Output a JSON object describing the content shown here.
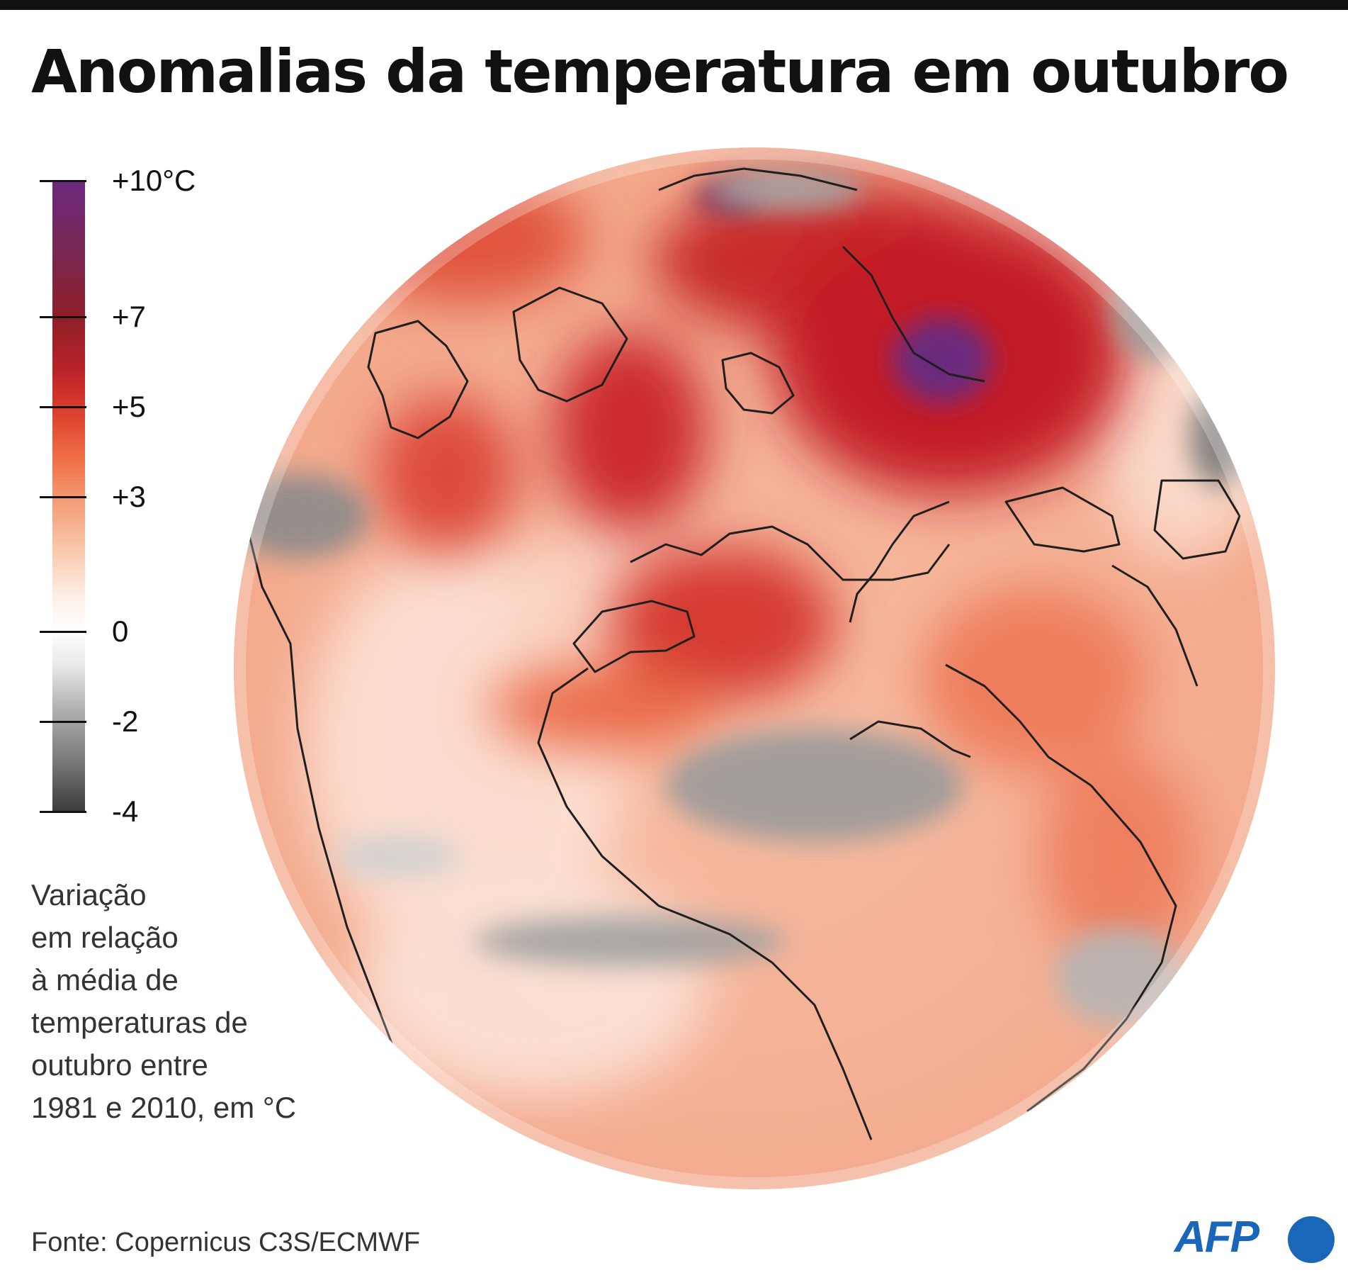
{
  "title": "Anomalias da temperatura em outubro",
  "legend": {
    "unit": "°C",
    "ticks": [
      {
        "value": 10,
        "label": "+10°C"
      },
      {
        "value": 7,
        "label": "+7"
      },
      {
        "value": 5,
        "label": "+5"
      },
      {
        "value": 3,
        "label": "+3"
      },
      {
        "value": 0,
        "label": "0"
      },
      {
        "value": -2,
        "label": "-2"
      },
      {
        "value": -4,
        "label": "-4"
      }
    ],
    "range": [
      -4,
      10
    ],
    "colors": {
      "max": "#6b2a7e",
      "strong_warm": "#b82229",
      "warm": "#ef6d44",
      "light_warm": "#f5a27d",
      "zero": "#ffffff",
      "cool": "#b0b0b0",
      "min": "#3c3c3c"
    }
  },
  "caption": [
    "Variação",
    "em relação",
    "à média de",
    "temperaturas de",
    "outubro entre",
    "1981 e 2010, em °C"
  ],
  "source": "Fonte: Copernicus C3S/ECMWF",
  "logo": {
    "text": "AFP",
    "color": "#1a66b8"
  }
}
